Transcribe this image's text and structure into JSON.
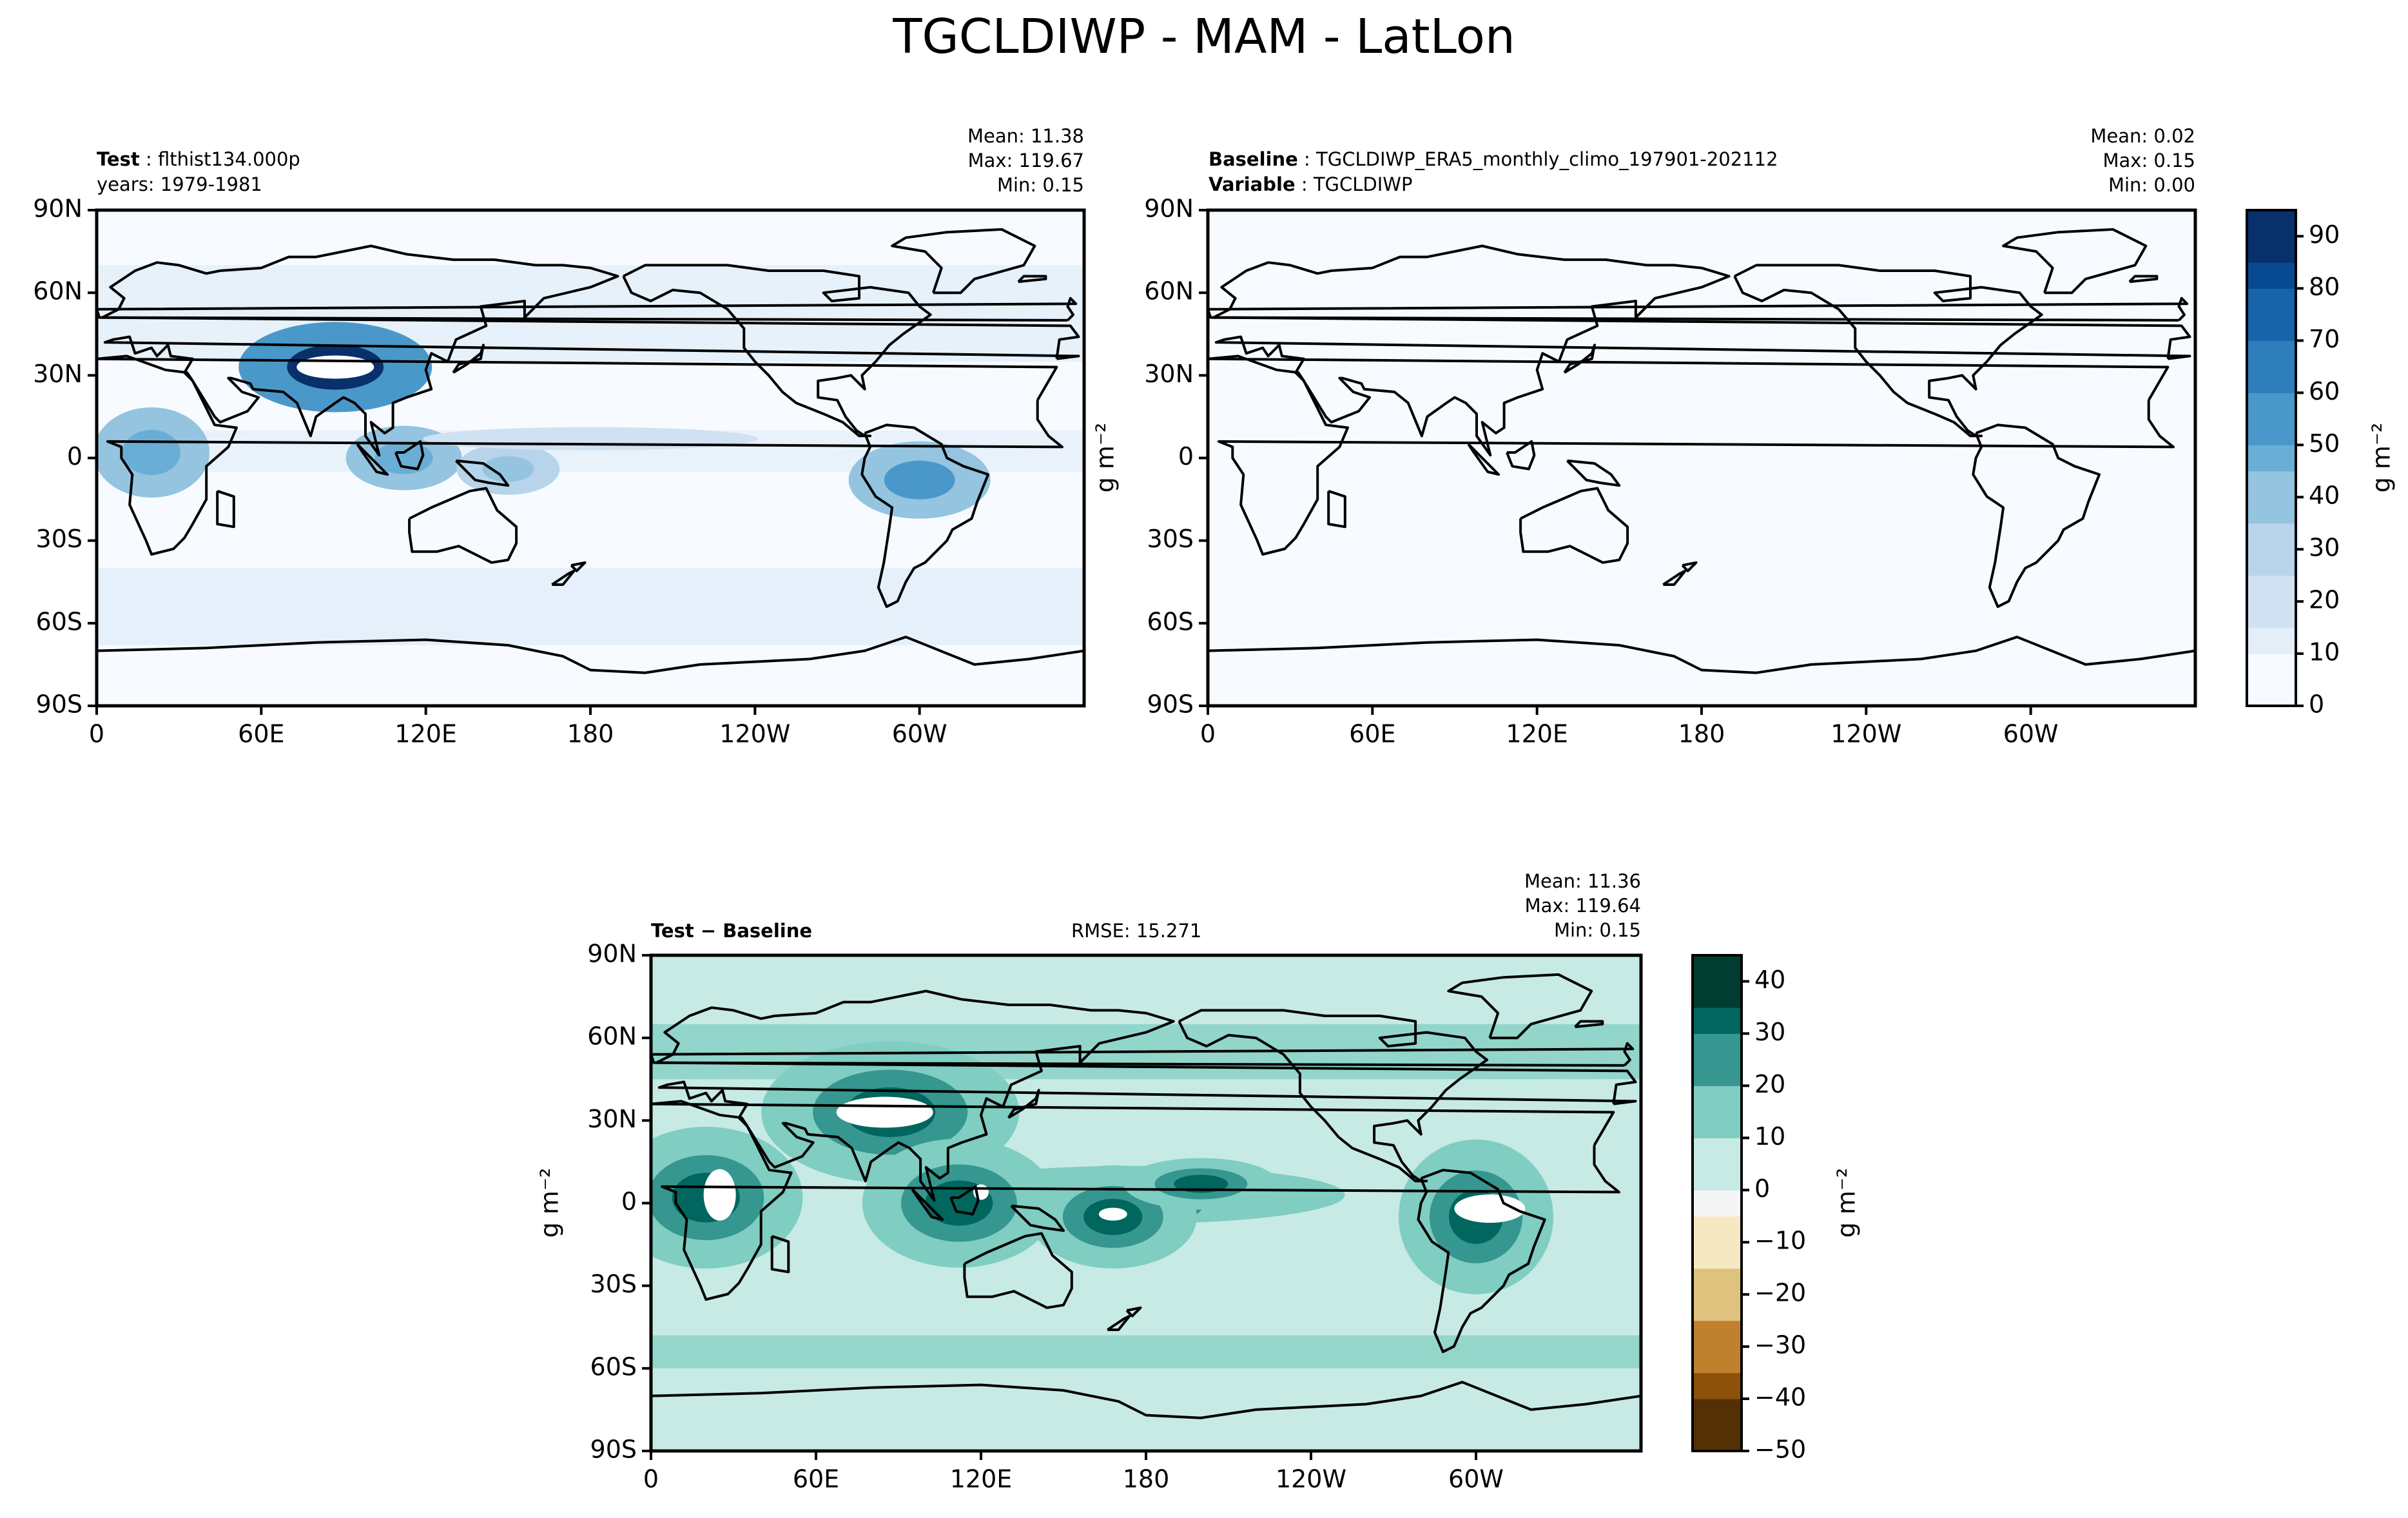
{
  "figure": {
    "title": "TGCLDIWP - MAM - LatLon"
  },
  "colors": {
    "blues": [
      "#f7fbff",
      "#e3eef9",
      "#d0e1f2",
      "#b7d4ea",
      "#94c4df",
      "#6aaed6",
      "#4a98c9",
      "#2e7ebc",
      "#1764ab",
      "#084a91",
      "#08306b"
    ],
    "diverging": [
      "#543005",
      "#8c510a",
      "#bf812d",
      "#dfc27d",
      "#f6e8c3",
      "#f5f5f5",
      "#c7eae5",
      "#80cdc1",
      "#35978f",
      "#01665e",
      "#003c30"
    ]
  },
  "icons": {
    "map": "world-coastline-map"
  },
  "panels": {
    "test": {
      "label_bold": "Test",
      "label_value": "flthist134.000p",
      "years": "years: 1979-1981",
      "stats": {
        "mean": "Mean: 11.38",
        "max": "Max: 119.67",
        "min": "Min:  0.15"
      }
    },
    "baseline": {
      "label_bold": "Baseline",
      "label_value": "TGCLDIWP_ERA5_monthly_climo_197901-202112",
      "variable_bold": "Variable",
      "variable_value": "TGCLDIWP",
      "stats": {
        "mean": "Mean:  0.02",
        "max": "Max:  0.15",
        "min": "Min:  0.00"
      },
      "side_unit": "g m⁻²"
    },
    "diff": {
      "label_bold": "Test − Baseline",
      "rmse": "RMSE: 15.271",
      "stats": {
        "mean": "Mean: 11.36",
        "max": "Max: 119.64",
        "min": "Min:  0.15"
      },
      "side_unit": "g m⁻²"
    }
  },
  "colorbars": {
    "top": {
      "ticks": [
        "0",
        "10",
        "20",
        "30",
        "40",
        "50",
        "60",
        "70",
        "80",
        "90"
      ],
      "unit": "g m⁻²"
    },
    "bottom": {
      "ticks": [
        "−50",
        "−40",
        "−30",
        "−20",
        "−10",
        "0",
        "10",
        "20",
        "30",
        "40"
      ],
      "unit": "g m⁻²"
    }
  },
  "chart_data": [
    {
      "type": "heatmap",
      "name": "Test",
      "xlabel": "",
      "ylabel": "",
      "x_ticks": [
        "0",
        "60E",
        "120E",
        "180",
        "120W",
        "60W"
      ],
      "y_ticks": [
        "90N",
        "60N",
        "30N",
        "0",
        "30S",
        "60S",
        "90S"
      ],
      "colorbar_range": [
        0,
        95
      ],
      "stats": {
        "mean": 11.38,
        "max": 119.67,
        "min": 0.15
      },
      "features": [
        {
          "lon": 87,
          "lat": 33,
          "value": 95
        },
        {
          "lon": 300,
          "lat": -8,
          "value": 55
        },
        {
          "lon": 20,
          "lat": 2,
          "value": 50
        },
        {
          "lon": 112,
          "lat": 0,
          "value": 45
        },
        {
          "lon": 150,
          "lat": -4,
          "value": 40
        },
        {
          "lon": 180,
          "lat": 7,
          "value": 22
        }
      ]
    },
    {
      "type": "heatmap",
      "name": "Baseline",
      "xlabel": "",
      "ylabel": "",
      "x_ticks": [
        "0",
        "60E",
        "120E",
        "180",
        "120W",
        "60W"
      ],
      "y_ticks": [
        "90N",
        "60N",
        "30N",
        "0",
        "30S",
        "60S",
        "90S"
      ],
      "colorbar_range": [
        0,
        95
      ],
      "stats": {
        "mean": 0.02,
        "max": 0.15,
        "min": 0.0
      },
      "features": []
    },
    {
      "type": "heatmap",
      "name": "Test − Baseline",
      "xlabel": "",
      "ylabel": "",
      "x_ticks": [
        "0",
        "60E",
        "120E",
        "180",
        "120W",
        "60W"
      ],
      "y_ticks": [
        "90N",
        "60N",
        "30N",
        "0",
        "30S",
        "60S",
        "90S"
      ],
      "colorbar_range": [
        -50,
        45
      ],
      "rmse": 15.271,
      "stats": {
        "mean": 11.36,
        "max": 119.64,
        "min": 0.15
      },
      "features": [
        {
          "lon": 87,
          "lat": 33,
          "value": 60
        },
        {
          "lon": 20,
          "lat": 2,
          "value": 60
        },
        {
          "lon": 300,
          "lat": -5,
          "value": 60
        },
        {
          "lon": 112,
          "lat": 0,
          "value": 55
        },
        {
          "lon": 168,
          "lat": -5,
          "value": 40
        },
        {
          "lon": 200,
          "lat": 7,
          "value": 28
        }
      ]
    }
  ]
}
